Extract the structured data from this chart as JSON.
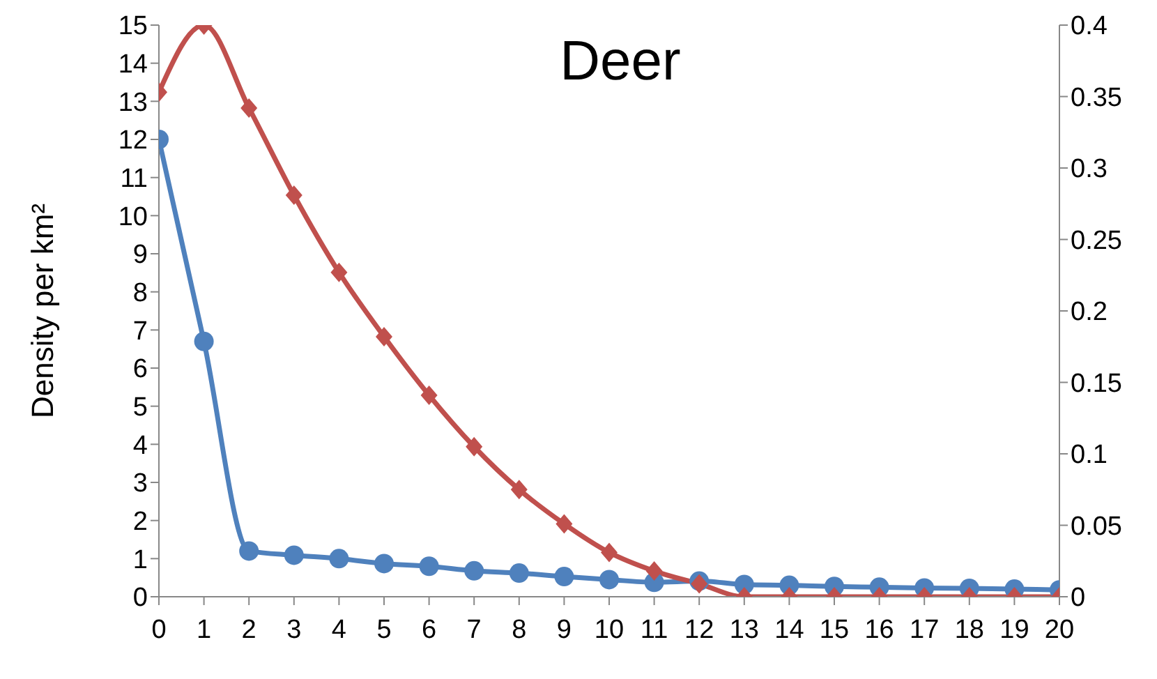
{
  "chart_data": {
    "type": "line",
    "title": "Deer",
    "ylabel": "Density per km²",
    "x": [
      0,
      1,
      2,
      3,
      4,
      5,
      6,
      7,
      8,
      9,
      10,
      11,
      12,
      13,
      14,
      15,
      16,
      17,
      18,
      19,
      20
    ],
    "xlim": [
      0,
      20
    ],
    "xticks": [
      0,
      1,
      2,
      3,
      4,
      5,
      6,
      7,
      8,
      9,
      10,
      11,
      12,
      13,
      14,
      15,
      16,
      17,
      18,
      19,
      20
    ],
    "ylim": [
      0,
      15
    ],
    "yticks": [
      0,
      1,
      2,
      3,
      4,
      5,
      6,
      7,
      8,
      9,
      10,
      11,
      12,
      13,
      14,
      15
    ],
    "y2lim": [
      0,
      0.4
    ],
    "y2ticks": [
      0,
      0.05,
      0.1,
      0.15,
      0.2,
      0.25,
      0.3,
      0.35,
      0.4
    ],
    "grid": false,
    "legend": false,
    "series": [
      {
        "color": "#4f81bd",
        "marker": "circle",
        "values": [
          12,
          6.7,
          1.2,
          1.09,
          1.0,
          0.87,
          0.8,
          0.68,
          0.62,
          0.53,
          0.45,
          0.38,
          0.41,
          0.32,
          0.3,
          0.27,
          0.25,
          0.23,
          0.22,
          0.2,
          0.18
        ]
      },
      {
        "color": "#c0504d",
        "marker": "diamond",
        "axis": "y2",
        "values": [
          0.353,
          0.4,
          0.342,
          0.281,
          0.227,
          0.182,
          0.141,
          0.105,
          0.075,
          0.051,
          0.031,
          0.018,
          0.009,
          0,
          0,
          0,
          0,
          0,
          0,
          0,
          0
        ]
      }
    ]
  }
}
